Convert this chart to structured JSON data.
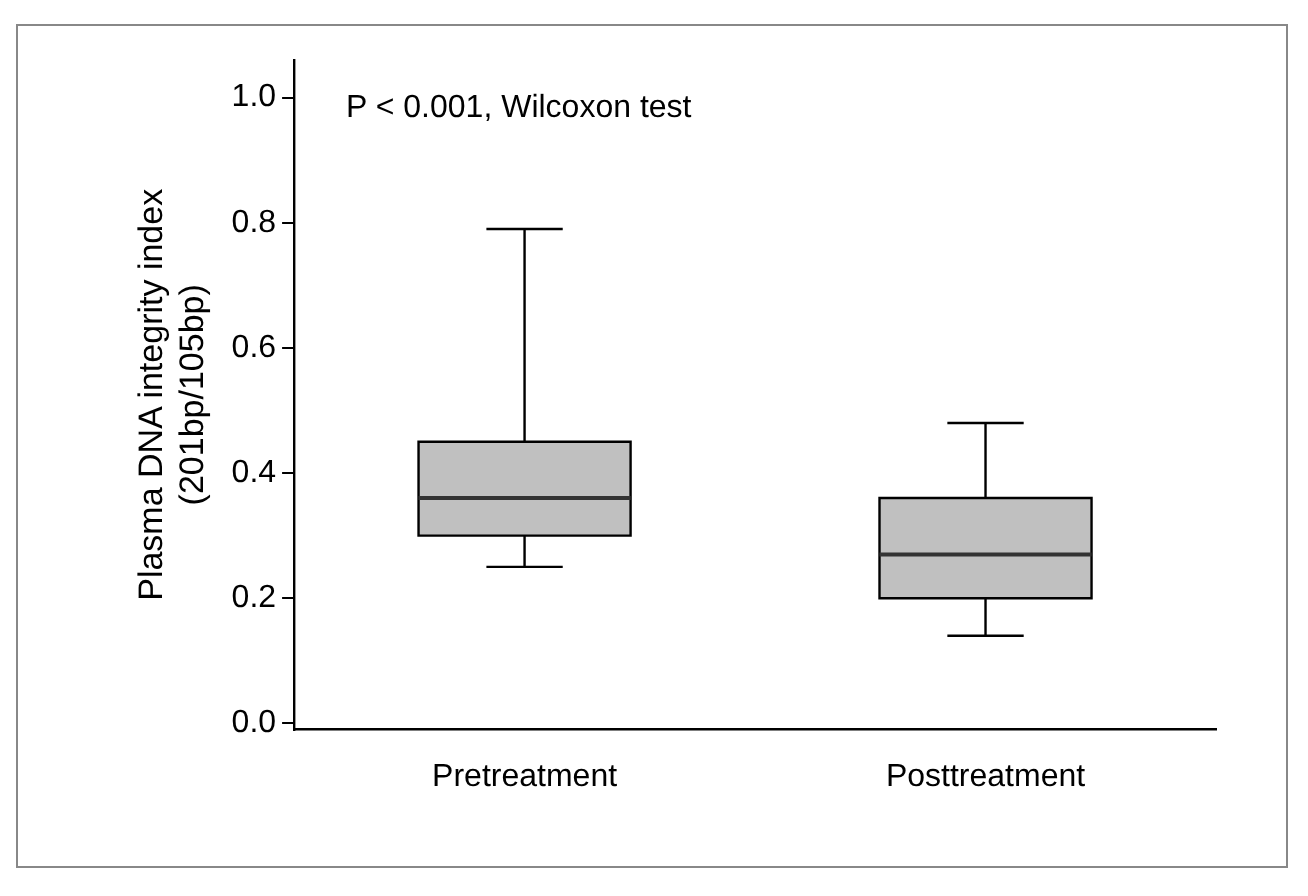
{
  "chart_data": {
    "type": "box",
    "ylabel": "Plasma DNA integrity index\n(201bp/105bp)",
    "categories": [
      "Pretreatment",
      "Posttreatment"
    ],
    "boxes": [
      {
        "low": 0.25,
        "q1": 0.3,
        "median": 0.36,
        "q3": 0.45,
        "high": 0.79
      },
      {
        "low": 0.14,
        "q1": 0.2,
        "median": 0.27,
        "q3": 0.36,
        "high": 0.48
      }
    ],
    "color": "#c0c0c0",
    "ylim": [
      -0.01,
      1.06
    ],
    "yticks": [
      {
        "value": 0,
        "label": "0.0"
      },
      0.2,
      0.4,
      0.6,
      0.8,
      {
        "value": 1,
        "label": "1.0"
      }
    ],
    "grid": false,
    "legend": false,
    "annotations": [
      "P < 0.001, Wilcoxon test"
    ]
  }
}
